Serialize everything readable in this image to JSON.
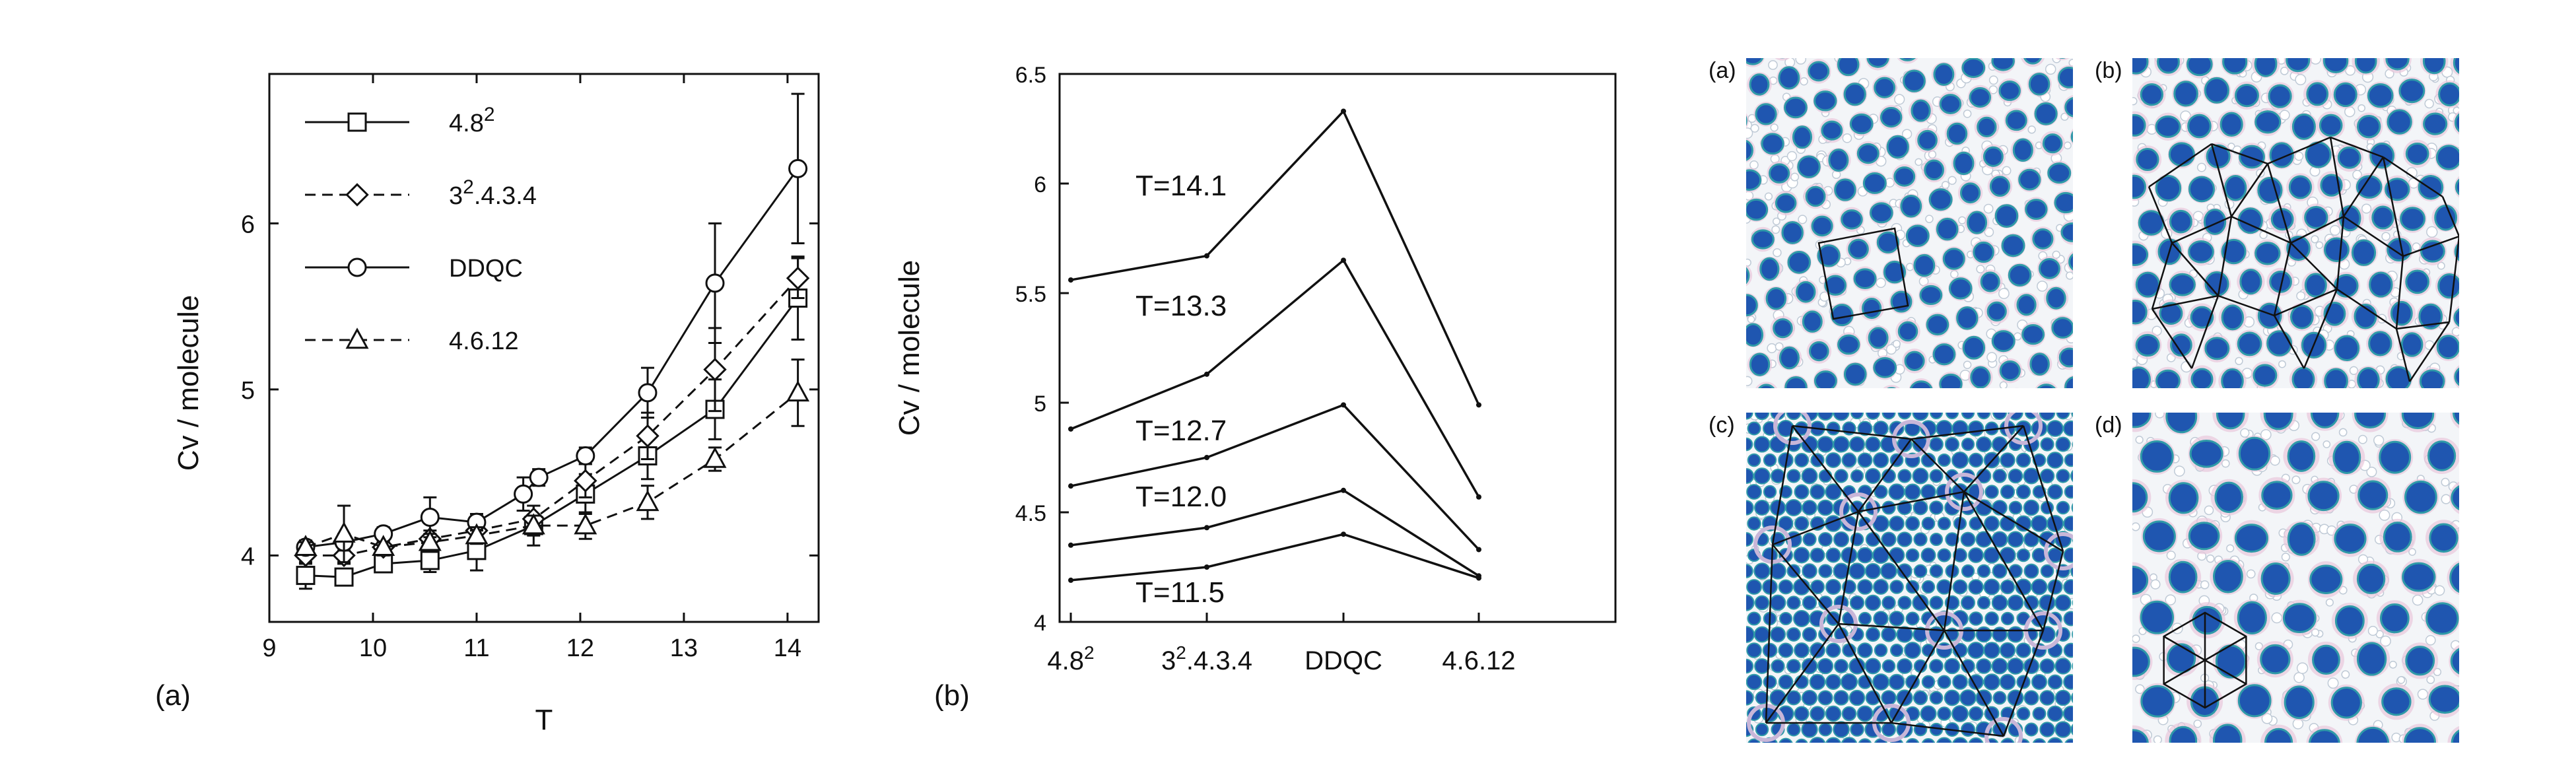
{
  "chart_data": [
    {
      "type": "line",
      "panel_label": "(a)",
      "xlabel": "T",
      "ylabel": "Cv / molecule",
      "xlim": [
        9,
        14.3
      ],
      "ylim": [
        3.6,
        6.9
      ],
      "xticks": [
        "9",
        "10",
        "11",
        "12",
        "13",
        "14"
      ],
      "yticks": [
        "4",
        "5",
        "6"
      ],
      "legend_position": "top-left",
      "series": [
        {
          "name": "4.8",
          "name_sup": "2",
          "marker": "square",
          "dash": "solid",
          "x": [
            9.35,
            9.72,
            10.1,
            10.55,
            11.0,
            11.55,
            12.05,
            12.65,
            13.3,
            14.1
          ],
          "y": [
            3.88,
            3.87,
            3.95,
            3.97,
            4.03,
            4.18,
            4.37,
            4.6,
            4.88,
            5.55
          ],
          "err": [
            0.08,
            0.04,
            0.05,
            0.07,
            0.12,
            0.12,
            0.12,
            0.14,
            0.18,
            0.25
          ]
        },
        {
          "name": "3",
          "name_sup": "2",
          "name_rest": ".4.3.4",
          "marker": "diamond",
          "dash": "dashed",
          "x": [
            9.35,
            9.72,
            10.1,
            10.55,
            11.0,
            11.55,
            12.05,
            12.65,
            13.3,
            14.1
          ],
          "y": [
            4.0,
            4.0,
            4.05,
            4.1,
            4.15,
            4.22,
            4.45,
            4.72,
            5.12,
            5.67
          ],
          "err": [
            0.05,
            0.05,
            0.05,
            0.05,
            0.06,
            0.08,
            0.1,
            0.14,
            0.25,
            0.12
          ]
        },
        {
          "name": "DDQC",
          "marker": "circle",
          "dash": "solid",
          "x": [
            9.35,
            9.72,
            10.1,
            10.55,
            11.0,
            11.45,
            11.6,
            12.05,
            12.65,
            13.3,
            14.1
          ],
          "y": [
            4.05,
            4.08,
            4.13,
            4.23,
            4.2,
            4.37,
            4.47,
            4.6,
            4.98,
            5.64,
            6.33
          ],
          "err": [
            0.04,
            0.05,
            0.04,
            0.12,
            0.05,
            0.1,
            0.05,
            0.05,
            0.15,
            0.36,
            0.45
          ]
        },
        {
          "name": "4.6.12",
          "marker": "triangle",
          "dash": "dashed",
          "x": [
            9.35,
            9.72,
            10.1,
            10.55,
            11.0,
            11.55,
            12.05,
            12.65,
            13.3,
            14.1
          ],
          "y": [
            4.05,
            4.13,
            4.05,
            4.08,
            4.12,
            4.18,
            4.18,
            4.32,
            4.58,
            4.98
          ],
          "err": [
            0.03,
            0.17,
            0.03,
            0.05,
            0.05,
            0.06,
            0.08,
            0.1,
            0.07,
            0.2
          ]
        }
      ]
    },
    {
      "type": "line",
      "panel_label": "(b)",
      "ylabel": "Cv / molecule",
      "xlabel": "",
      "ylim": [
        4,
        6.5
      ],
      "yticks": [
        "4",
        "4.5",
        "5",
        "5.5",
        "6",
        "6.5"
      ],
      "categories": [
        "4.8",
        "3",
        "DDQC",
        "4.6.12"
      ],
      "category_sup": [
        "2",
        "2",
        "",
        ""
      ],
      "category_rest": [
        "",
        ".4.3.4",
        "",
        ""
      ],
      "series": [
        {
          "name": "T=14.1",
          "values": [
            5.56,
            5.67,
            6.33,
            4.99
          ]
        },
        {
          "name": "T=13.3",
          "values": [
            4.88,
            5.13,
            5.65,
            4.57
          ]
        },
        {
          "name": "T=12.7",
          "values": [
            4.62,
            4.75,
            4.99,
            4.33
          ]
        },
        {
          "name": "T=12.0",
          "values": [
            4.35,
            4.43,
            4.6,
            4.21
          ]
        },
        {
          "name": "T=11.5",
          "values": [
            4.19,
            4.25,
            4.4,
            4.2
          ]
        }
      ]
    }
  ],
  "images": [
    {
      "label": "(a)",
      "pattern": "square-tiling",
      "overlay": "single square cell"
    },
    {
      "label": "(b)",
      "pattern": "sigma-like tiling",
      "overlay": "triangle-square network"
    },
    {
      "label": "(c)",
      "pattern": "dodecagonal quasicrystal",
      "overlay": "large triangle-square tiling"
    },
    {
      "label": "(d)",
      "pattern": "4.6.12 tiling",
      "overlay": "single hexagon"
    }
  ],
  "colors": {
    "particle": "#1f56b0",
    "particle_edge": "#2f9aa8",
    "shell": "#e8c8dc",
    "line": "#111111"
  }
}
